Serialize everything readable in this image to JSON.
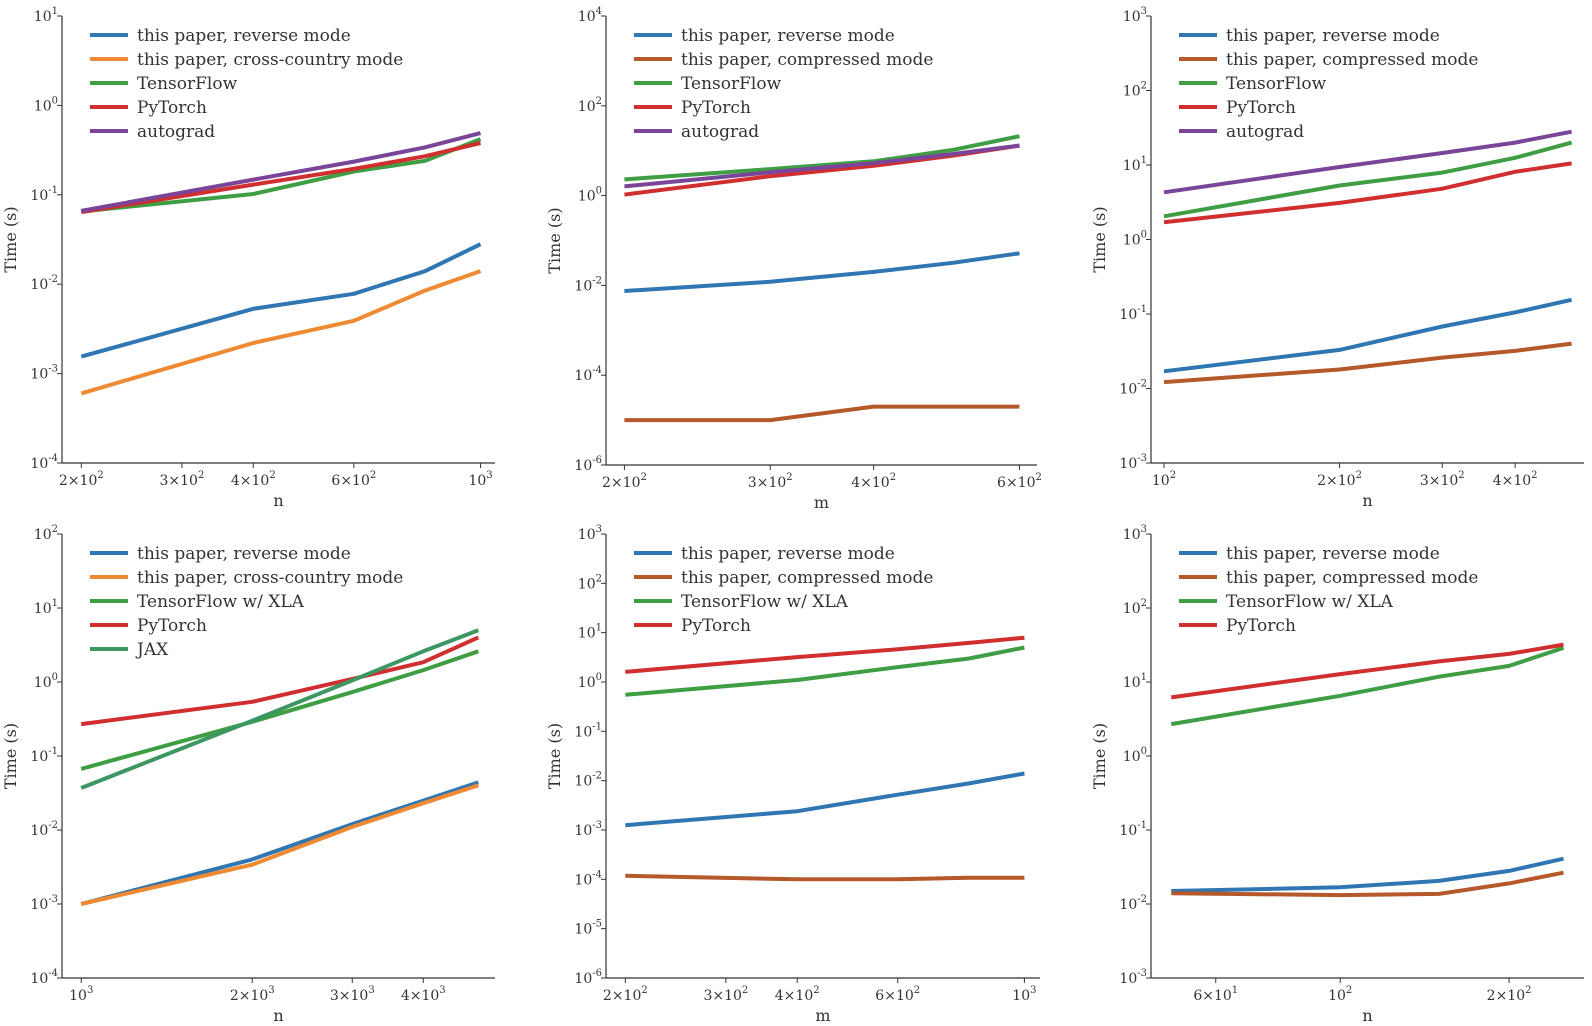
{
  "colors": {
    "blue": "#2f76b3",
    "orange": "#ef8a32",
    "green": "#3f9e44",
    "red": "#d12f2f",
    "purple": "#7a4598",
    "brown": "#b5582a",
    "teal": "#3d9763"
  },
  "chart_data": [
    {
      "type": "line",
      "xscale": "log",
      "yscale": "log",
      "xlabel": "n",
      "ylabel": "Time (s)",
      "xlim": [
        185,
        1060
      ],
      "ylim": [
        0.0001,
        10
      ],
      "xticks": [
        {
          "v": 200,
          "m": "2",
          "e": "2"
        },
        {
          "v": 300,
          "m": "3",
          "e": "2"
        },
        {
          "v": 400,
          "m": "4",
          "e": "2"
        },
        {
          "v": 600,
          "m": "6",
          "e": "2"
        },
        {
          "v": 1000,
          "m": "",
          "e": "3"
        }
      ],
      "yticks": [
        -4,
        -3,
        -2,
        -1,
        0,
        1
      ],
      "x": [
        200,
        400,
        600,
        800,
        1000
      ],
      "series": [
        {
          "name": "this paper, reverse mode",
          "color": "blue",
          "values": [
            0.00155,
            0.0053,
            0.0078,
            0.014,
            0.028
          ]
        },
        {
          "name": "this paper, cross-country mode",
          "color": "orange",
          "values": [
            0.0006,
            0.0022,
            0.0039,
            0.0085,
            0.014
          ]
        },
        {
          "name": "TensorFlow",
          "color": "green",
          "values": [
            0.065,
            0.102,
            0.182,
            0.24,
            0.42
          ]
        },
        {
          "name": "PyTorch",
          "color": "red",
          "values": [
            0.064,
            0.13,
            0.195,
            0.27,
            0.38
          ]
        },
        {
          "name": "autograd",
          "color": "purple",
          "values": [
            0.066,
            0.148,
            0.235,
            0.34,
            0.49
          ]
        }
      ]
    },
    {
      "type": "line",
      "xscale": "log",
      "yscale": "log",
      "xlabel": "m",
      "ylabel": "Time (s)",
      "xlim": [
        190,
        630
      ],
      "ylim": [
        1e-06,
        10000
      ],
      "xticks": [
        {
          "v": 200,
          "m": "2",
          "e": "2"
        },
        {
          "v": 300,
          "m": "3",
          "e": "2"
        },
        {
          "v": 400,
          "m": "4",
          "e": "2"
        },
        {
          "v": 600,
          "m": "6",
          "e": "2"
        }
      ],
      "yticks": [
        -6,
        -4,
        -2,
        0,
        2,
        4
      ],
      "x": [
        200,
        300,
        400,
        500,
        600
      ],
      "series": [
        {
          "name": "this paper, reverse mode",
          "color": "blue",
          "values": [
            0.0075,
            0.012,
            0.02,
            0.032,
            0.052
          ]
        },
        {
          "name": "this paper, compressed mode",
          "color": "brown",
          "values": [
            1e-05,
            1e-05,
            2e-05,
            2e-05,
            2e-05
          ]
        },
        {
          "name": "TensorFlow",
          "color": "green",
          "values": [
            2.3,
            3.9,
            5.8,
            10.5,
            21
          ]
        },
        {
          "name": "PyTorch",
          "color": "red",
          "values": [
            1.05,
            2.7,
            4.6,
            7.8,
            13
          ]
        },
        {
          "name": "autograd",
          "color": "purple",
          "values": [
            1.6,
            3.3,
            5.3,
            8.5,
            13
          ]
        }
      ]
    },
    {
      "type": "line",
      "xscale": "log",
      "yscale": "log",
      "xlabel": "n",
      "ylabel": "Time (s)",
      "xlim": [
        95,
        525
      ],
      "ylim": [
        0.001,
        1000
      ],
      "xticks": [
        {
          "v": 100,
          "m": "",
          "e": "2"
        },
        {
          "v": 200,
          "m": "2",
          "e": "2"
        },
        {
          "v": 300,
          "m": "3",
          "e": "2"
        },
        {
          "v": 400,
          "m": "4",
          "e": "2"
        }
      ],
      "yticks": [
        -3,
        -2,
        -1,
        0,
        1,
        2,
        3
      ],
      "x": [
        100,
        200,
        300,
        400,
        500
      ],
      "series": [
        {
          "name": "this paper, reverse mode",
          "color": "blue",
          "values": [
            0.017,
            0.033,
            0.068,
            0.105,
            0.155
          ]
        },
        {
          "name": "this paper, compressed mode",
          "color": "brown",
          "values": [
            0.0122,
            0.018,
            0.026,
            0.032,
            0.04
          ]
        },
        {
          "name": "TensorFlow",
          "color": "green",
          "values": [
            2.05,
            5.3,
            7.9,
            12.5,
            20
          ]
        },
        {
          "name": "PyTorch",
          "color": "red",
          "values": [
            1.7,
            3.1,
            4.8,
            8.1,
            10.5
          ]
        },
        {
          "name": "autograd",
          "color": "purple",
          "values": [
            4.3,
            9.4,
            14.5,
            20,
            28
          ]
        }
      ]
    },
    {
      "type": "line",
      "xscale": "log",
      "yscale": "log",
      "xlabel": "n",
      "ylabel": "Time (s)",
      "xlim": [
        925,
        5350
      ],
      "ylim": [
        0.0001,
        100
      ],
      "xticks": [
        {
          "v": 1000,
          "m": "",
          "e": "3"
        },
        {
          "v": 2000,
          "m": "2",
          "e": "3"
        },
        {
          "v": 3000,
          "m": "3",
          "e": "3"
        },
        {
          "v": 4000,
          "m": "4",
          "e": "3"
        }
      ],
      "yticks": [
        -4,
        -3,
        -2,
        -1,
        0,
        1,
        2
      ],
      "x": [
        1000,
        2000,
        3000,
        4000,
        5000
      ],
      "series": [
        {
          "name": "this paper, reverse mode",
          "color": "blue",
          "values": [
            0.001,
            0.004,
            0.012,
            0.025,
            0.044
          ]
        },
        {
          "name": "this paper, cross-country mode",
          "color": "orange",
          "values": [
            0.001,
            0.0034,
            0.011,
            0.023,
            0.04
          ]
        },
        {
          "name": "TensorFlow w/ XLA",
          "color": "green",
          "values": [
            0.067,
            0.29,
            0.73,
            1.45,
            2.6
          ]
        },
        {
          "name": "PyTorch",
          "color": "red",
          "values": [
            0.27,
            0.54,
            1.1,
            1.85,
            4
          ]
        },
        {
          "name": "JAX",
          "color": "teal",
          "values": [
            0.037,
            0.3,
            1.05,
            2.6,
            5
          ]
        }
      ]
    },
    {
      "type": "line",
      "xscale": "log",
      "yscale": "log",
      "xlabel": "m",
      "ylabel": "Time (s)",
      "xlim": [
        185,
        1065
      ],
      "ylim": [
        1e-06,
        1000
      ],
      "xticks": [
        {
          "v": 200,
          "m": "2",
          "e": "2"
        },
        {
          "v": 300,
          "m": "3",
          "e": "2"
        },
        {
          "v": 400,
          "m": "4",
          "e": "2"
        },
        {
          "v": 600,
          "m": "6",
          "e": "2"
        },
        {
          "v": 1000,
          "m": "",
          "e": "3"
        }
      ],
      "yticks": [
        -6,
        -5,
        -4,
        -3,
        -2,
        -1,
        0,
        1,
        2,
        3
      ],
      "x": [
        200,
        400,
        600,
        800,
        1000
      ],
      "series": [
        {
          "name": "this paper, reverse mode",
          "color": "blue",
          "values": [
            0.00125,
            0.0024,
            0.0052,
            0.0088,
            0.014
          ]
        },
        {
          "name": "this paper, compressed mode",
          "color": "brown",
          "values": [
            0.000118,
            0.0001,
            0.0001,
            0.000108,
            0.000108
          ]
        },
        {
          "name": "TensorFlow w/ XLA",
          "color": "green",
          "values": [
            0.55,
            1.1,
            2,
            3,
            5
          ]
        },
        {
          "name": "PyTorch",
          "color": "red",
          "values": [
            1.6,
            3.2,
            4.6,
            6.2,
            7.9
          ]
        }
      ]
    },
    {
      "type": "line",
      "xscale": "log",
      "yscale": "log",
      "xlabel": "n",
      "ylabel": "Time (s)",
      "xlim": [
        46,
        272
      ],
      "ylim": [
        0.001,
        1000
      ],
      "xticks": [
        {
          "v": 60,
          "m": "6",
          "e": "1"
        },
        {
          "v": 100,
          "m": "",
          "e": "2"
        },
        {
          "v": 200,
          "m": "2",
          "e": "2"
        }
      ],
      "yticks": [
        -3,
        -2,
        -1,
        0,
        1,
        2,
        3
      ],
      "x": [
        50,
        100,
        150,
        200,
        250
      ],
      "series": [
        {
          "name": "this paper, reverse mode",
          "color": "blue",
          "values": [
            0.015,
            0.0168,
            0.0205,
            0.028,
            0.041
          ]
        },
        {
          "name": "this paper, compressed mode",
          "color": "brown",
          "values": [
            0.014,
            0.0132,
            0.0137,
            0.019,
            0.0265
          ]
        },
        {
          "name": "TensorFlow w/ XLA",
          "color": "green",
          "values": [
            2.7,
            6.5,
            11.8,
            16.5,
            29
          ]
        },
        {
          "name": "PyTorch",
          "color": "red",
          "values": [
            6.2,
            12.8,
            19,
            24,
            32
          ]
        }
      ]
    }
  ]
}
